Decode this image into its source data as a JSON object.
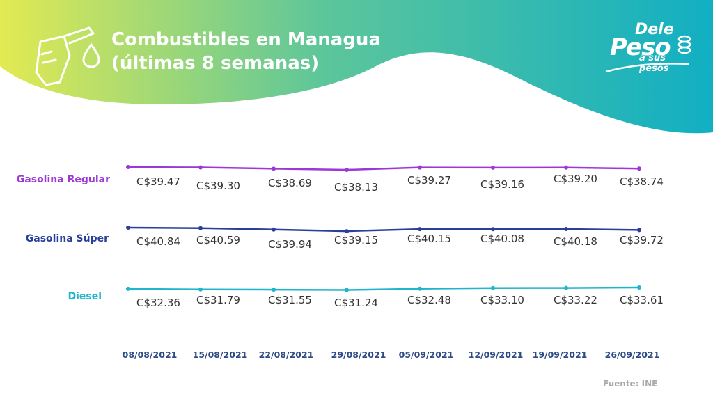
{
  "header": {
    "title_line1": "Combustibles en Managua",
    "title_line2": "(últimas 8 semanas)"
  },
  "logo": {
    "line1": "Dele",
    "line2": "Peso",
    "line3": "a sus pesos"
  },
  "colors": {
    "gradient_start": "#e3ea52",
    "gradient_mid": "#5dc69a",
    "gradient_end": "#11afc3",
    "regular": "#9b38d6",
    "super": "#2a3f9a",
    "diesel": "#1fb5cc",
    "dates": "#2d4a86"
  },
  "chart_data": {
    "type": "line",
    "title": "Combustibles en Managua (últimas 8 semanas)",
    "x": [
      "08/08/2021",
      "15/08/2021",
      "22/08/2021",
      "29/08/2021",
      "05/09/2021",
      "12/09/2021",
      "19/09/2021",
      "26/09/2021"
    ],
    "series": [
      {
        "name": "Gasolina Regular",
        "color": "#9b38d6",
        "values": [
          39.47,
          39.3,
          38.69,
          38.13,
          39.27,
          39.16,
          39.2,
          38.74
        ],
        "labels": [
          "C$39.47",
          "C$39.30",
          "C$38.69",
          "C$38.13",
          "C$39.27",
          "C$39.16",
          "C$39.20",
          "C$38.74"
        ]
      },
      {
        "name": "Gasolina Súper",
        "color": "#2a3f9a",
        "values": [
          40.84,
          40.59,
          39.94,
          39.15,
          40.15,
          40.08,
          40.18,
          39.72
        ],
        "labels": [
          "C$40.84",
          "C$40.59",
          "C$39.94",
          "C$39.15",
          "C$40.15",
          "C$40.08",
          "C$40.18",
          "C$39.72"
        ]
      },
      {
        "name": "Diesel",
        "color": "#1fb5cc",
        "values": [
          32.36,
          31.79,
          31.55,
          31.24,
          32.48,
          33.1,
          33.22,
          33.61
        ],
        "labels": [
          "C$32.36",
          "C$31.79",
          "C$31.55",
          "C$31.24",
          "C$32.48",
          "C$33.10",
          "C$33.22",
          "C$33.61"
        ]
      }
    ],
    "grid": false,
    "legend": "left",
    "source": "Fuente: INE"
  }
}
